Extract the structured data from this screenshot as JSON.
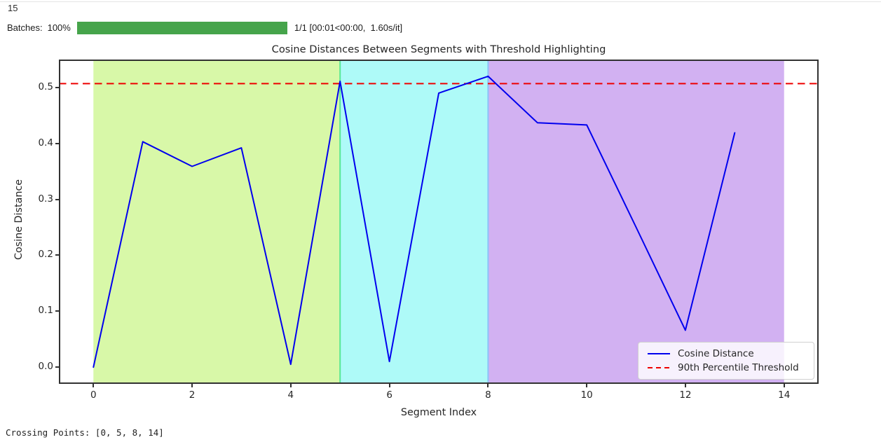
{
  "page": {
    "execution_count": "15",
    "progress": {
      "label": "Batches:",
      "percent": "100%",
      "value": 100,
      "bar_color": "#46a44b",
      "stats": "1/1 [00:01<00:00,  1.60s/it]"
    },
    "output_text": "Crossing Points: [0, 5, 8, 14]"
  },
  "chart_data": {
    "type": "line",
    "title": "Cosine Distances Between Segments with Threshold Highlighting",
    "xlabel": "Segment Index",
    "ylabel": "Cosine Distance",
    "x": [
      0,
      1,
      2,
      3,
      4,
      5,
      6,
      7,
      8,
      9,
      10,
      11,
      12,
      13
    ],
    "series": [
      {
        "name": "Cosine Distance",
        "color": "#0000ee",
        "values": [
          0.0,
          0.403,
          0.359,
          0.392,
          0.005,
          0.511,
          0.01,
          0.49,
          0.52,
          0.437,
          0.433,
          0.25,
          0.066,
          0.419
        ]
      }
    ],
    "threshold": {
      "name": "90th Percentile Threshold",
      "value": 0.507,
      "color": "#ee0000",
      "linestyle": "dashed"
    },
    "xticks": [
      0,
      2,
      4,
      6,
      8,
      10,
      12,
      14
    ],
    "yticks": [
      0.0,
      0.1,
      0.2,
      0.3,
      0.4,
      0.5
    ],
    "xlim": [
      -0.7,
      14.7
    ],
    "ylim": [
      -0.03,
      0.55
    ],
    "grid": false,
    "legend_position": "lower right",
    "regions": [
      {
        "from": 0,
        "to": 5,
        "color": "#d8f8a8"
      },
      {
        "from": 5,
        "to": 8,
        "color": "#aefaf8",
        "edge": "#57e795"
      },
      {
        "from": 8,
        "to": 14,
        "color": "#d2b1f2",
        "edge": "#8ac4f8"
      }
    ],
    "crossing_points": [
      0,
      5,
      8,
      14
    ]
  }
}
